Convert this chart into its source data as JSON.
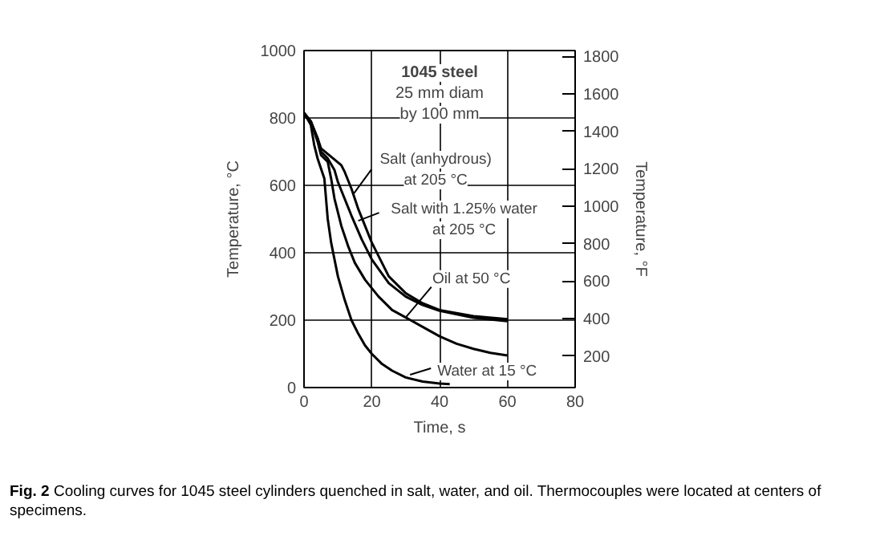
{
  "chart_data": {
    "type": "line",
    "xlabel": "Time, s",
    "ylabel": "Temperature, °C",
    "y2label": "Temperature, °F",
    "xlim": [
      0,
      80
    ],
    "xticks": [
      0,
      20,
      40,
      60,
      80
    ],
    "ylim": [
      0,
      1000
    ],
    "yticks": [
      0,
      200,
      400,
      600,
      800,
      1000
    ],
    "y2lim": [
      32,
      1832
    ],
    "y2ticks": [
      200,
      400,
      600,
      800,
      1000,
      1200,
      1400,
      1600,
      1800
    ],
    "grid": true,
    "marker": "none",
    "line_style": "solid",
    "series": [
      {
        "color": "#000000",
        "x": [
          0,
          2,
          4,
          5,
          8,
          11,
          12,
          14,
          16,
          20,
          25,
          30,
          35,
          40,
          50,
          60
        ],
        "values": [
          815,
          790,
          740,
          710,
          685,
          660,
          640,
          590,
          530,
          430,
          330,
          280,
          250,
          230,
          212,
          203
        ]
      },
      {
        "color": "#000000",
        "x": [
          2,
          4,
          5,
          7,
          9,
          10,
          12,
          14,
          17,
          20,
          25,
          30,
          35,
          40,
          50,
          60
        ],
        "values": [
          790,
          740,
          700,
          680,
          645,
          610,
          560,
          510,
          440,
          380,
          310,
          270,
          245,
          228,
          207,
          197
        ]
      },
      {
        "color": "#000000",
        "x": [
          0,
          2,
          4,
          5,
          7,
          8,
          9,
          11,
          13,
          15,
          18,
          22,
          26,
          30,
          35,
          40,
          45,
          50,
          55,
          60
        ],
        "values": [
          815,
          790,
          730,
          690,
          670,
          620,
          560,
          480,
          420,
          370,
          320,
          270,
          230,
          208,
          180,
          152,
          130,
          115,
          103,
          95
        ]
      },
      {
        "color": "#000000",
        "x": [
          0,
          2,
          3,
          4,
          5,
          6,
          7,
          8,
          10,
          12,
          14,
          16,
          18,
          20,
          23,
          26,
          30,
          35,
          40,
          43
        ],
        "values": [
          815,
          780,
          720,
          680,
          650,
          620,
          500,
          430,
          330,
          260,
          200,
          160,
          125,
          100,
          70,
          50,
          30,
          18,
          12,
          10
        ]
      }
    ],
    "annotations": [
      {
        "text": "Salt (anhydrous)\nat 205 °C",
        "x": 14.7,
        "y": 576
      },
      {
        "text": "Salt with 1.25% water\nat 205 °C",
        "x": 16,
        "y": 495
      },
      {
        "text": "Oil at 50 °C",
        "x": 30,
        "y": 208
      },
      {
        "text": "Water at 15 °C",
        "x": 31.3,
        "y": 38
      },
      "1045 steel",
      "25 mm diam\nby 100 mm",
      "Fig. 2 Cooling curves for 1045 steel cylinders quenched in salt, water, and oil. Thermocouples were located at centers of specimens."
    ]
  }
}
